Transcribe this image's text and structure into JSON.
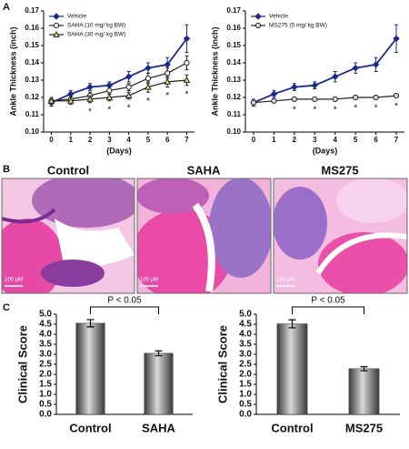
{
  "panel_labels": [
    "A",
    "B",
    "C"
  ],
  "histology": {
    "labels": [
      "Control",
      "SAHA",
      "MS275"
    ],
    "scale_bars": [
      "100 µM",
      "100 µM",
      "100 µM"
    ]
  },
  "chart_data": [
    {
      "type": "line",
      "ylabel": "Ankle Thickness (inch)",
      "xlabel": "(Days)",
      "x": [
        0,
        1,
        2,
        3,
        4,
        5,
        6,
        7
      ],
      "xlim": [
        -0.4,
        7.4
      ],
      "xticks": [
        0,
        1,
        2,
        3,
        4,
        5,
        6,
        7
      ],
      "ylim": [
        0.1,
        0.17
      ],
      "yticks": [
        {
          "value": 0.1,
          "label": "0.10"
        },
        0.11,
        0.12,
        0.13,
        0.14,
        0.15,
        0.16,
        0.17
      ],
      "series": [
        {
          "name": "Vehicle",
          "color": "#1c2a8c",
          "marker": "diamond",
          "marker_fill": "#1c2a8c",
          "values": [
            0.117,
            0.122,
            0.126,
            0.127,
            0.132,
            0.137,
            0.139,
            0.154
          ],
          "errors": [
            0.002,
            0.002,
            0.002,
            0.002,
            0.003,
            0.003,
            0.004,
            0.008
          ]
        },
        {
          "name": "SAHA (10 mg/ kg BW)",
          "color": "#222222",
          "marker": "circle",
          "marker_fill": "#ffffff",
          "values": [
            0.118,
            0.119,
            0.121,
            0.124,
            0.126,
            0.131,
            0.134,
            0.14
          ],
          "errors": [
            0.002,
            0.002,
            0.002,
            0.002,
            0.002,
            0.003,
            0.003,
            0.004
          ]
        },
        {
          "name": "SAHA (30 mg/ kg BW)",
          "color": "#222222",
          "marker": "triangle",
          "marker_fill": "#e8e27a",
          "values": [
            0.118,
            0.118,
            0.119,
            0.12,
            0.121,
            0.126,
            0.129,
            0.13
          ],
          "errors": [
            0.002,
            0.002,
            0.002,
            0.002,
            0.002,
            0.003,
            0.003,
            0.003
          ]
        }
      ],
      "significance": {
        "label": "*",
        "x": [
          2,
          3,
          4,
          5,
          6,
          7
        ]
      }
    },
    {
      "type": "line",
      "ylabel": "Ankle Thickness (inch)",
      "xlabel": "(Days)",
      "x": [
        0,
        1,
        2,
        3,
        4,
        5,
        6,
        7
      ],
      "xlim": [
        -0.4,
        7.4
      ],
      "xticks": [
        0,
        1,
        2,
        3,
        4,
        5,
        6,
        7
      ],
      "ylim": [
        0.1,
        0.17
      ],
      "yticks": [
        {
          "value": 0.1,
          "label": "0.10"
        },
        0.11,
        0.12,
        0.13,
        0.14,
        0.15,
        0.16,
        0.17
      ],
      "series": [
        {
          "name": "Vehicle",
          "color": "#1c2a8c",
          "marker": "diamond",
          "marker_fill": "#1c2a8c",
          "values": [
            0.117,
            0.122,
            0.126,
            0.127,
            0.132,
            0.137,
            0.139,
            0.154
          ],
          "errors": [
            0.002,
            0.002,
            0.002,
            0.002,
            0.003,
            0.003,
            0.004,
            0.008
          ]
        },
        {
          "name": "MS275 (5 mg/ kg BW)",
          "color": "#222222",
          "marker": "circle",
          "marker_fill": "#dddddd",
          "values": [
            0.117,
            0.118,
            0.119,
            0.119,
            0.119,
            0.12,
            0.12,
            0.121
          ],
          "errors": [
            0.001,
            0.001,
            0.001,
            0.001,
            0.001,
            0.001,
            0.001,
            0.001
          ]
        }
      ],
      "significance": {
        "label": "*",
        "x": [
          2,
          3,
          4,
          5,
          6,
          7
        ]
      }
    },
    {
      "type": "bar",
      "ylabel": "Clinical Score",
      "categories": [
        "Control",
        "SAHA"
      ],
      "values": [
        4.55,
        3.05
      ],
      "errors": [
        0.18,
        0.12
      ],
      "ylim": [
        0,
        5
      ],
      "yticks": [
        {
          "value": 0,
          "label": "0.0"
        },
        0.5,
        {
          "value": 1,
          "label": "1.0"
        },
        1.5,
        {
          "value": 2,
          "label": "2.0"
        },
        2.5,
        {
          "value": 3,
          "label": "3.0"
        },
        3.5,
        {
          "value": 4,
          "label": "4.0"
        },
        4.5,
        {
          "value": 5,
          "label": "5.0"
        }
      ],
      "annotation": "P < 0.05"
    },
    {
      "type": "bar",
      "ylabel": "Clinical Score",
      "categories": [
        "Control",
        "MS275"
      ],
      "values": [
        4.52,
        2.28
      ],
      "errors": [
        0.2,
        0.1
      ],
      "ylim": [
        0,
        5
      ],
      "yticks": [
        {
          "value": 0,
          "label": "0.0"
        },
        0.5,
        {
          "value": 1,
          "label": "1.0"
        },
        1.5,
        {
          "value": 2,
          "label": "2.0"
        },
        2.5,
        {
          "value": 3,
          "label": "3.0"
        },
        3.5,
        {
          "value": 4,
          "label": "4.0"
        },
        4.5,
        {
          "value": 5,
          "label": "5.0"
        }
      ],
      "annotation": "P < 0.05"
    }
  ]
}
